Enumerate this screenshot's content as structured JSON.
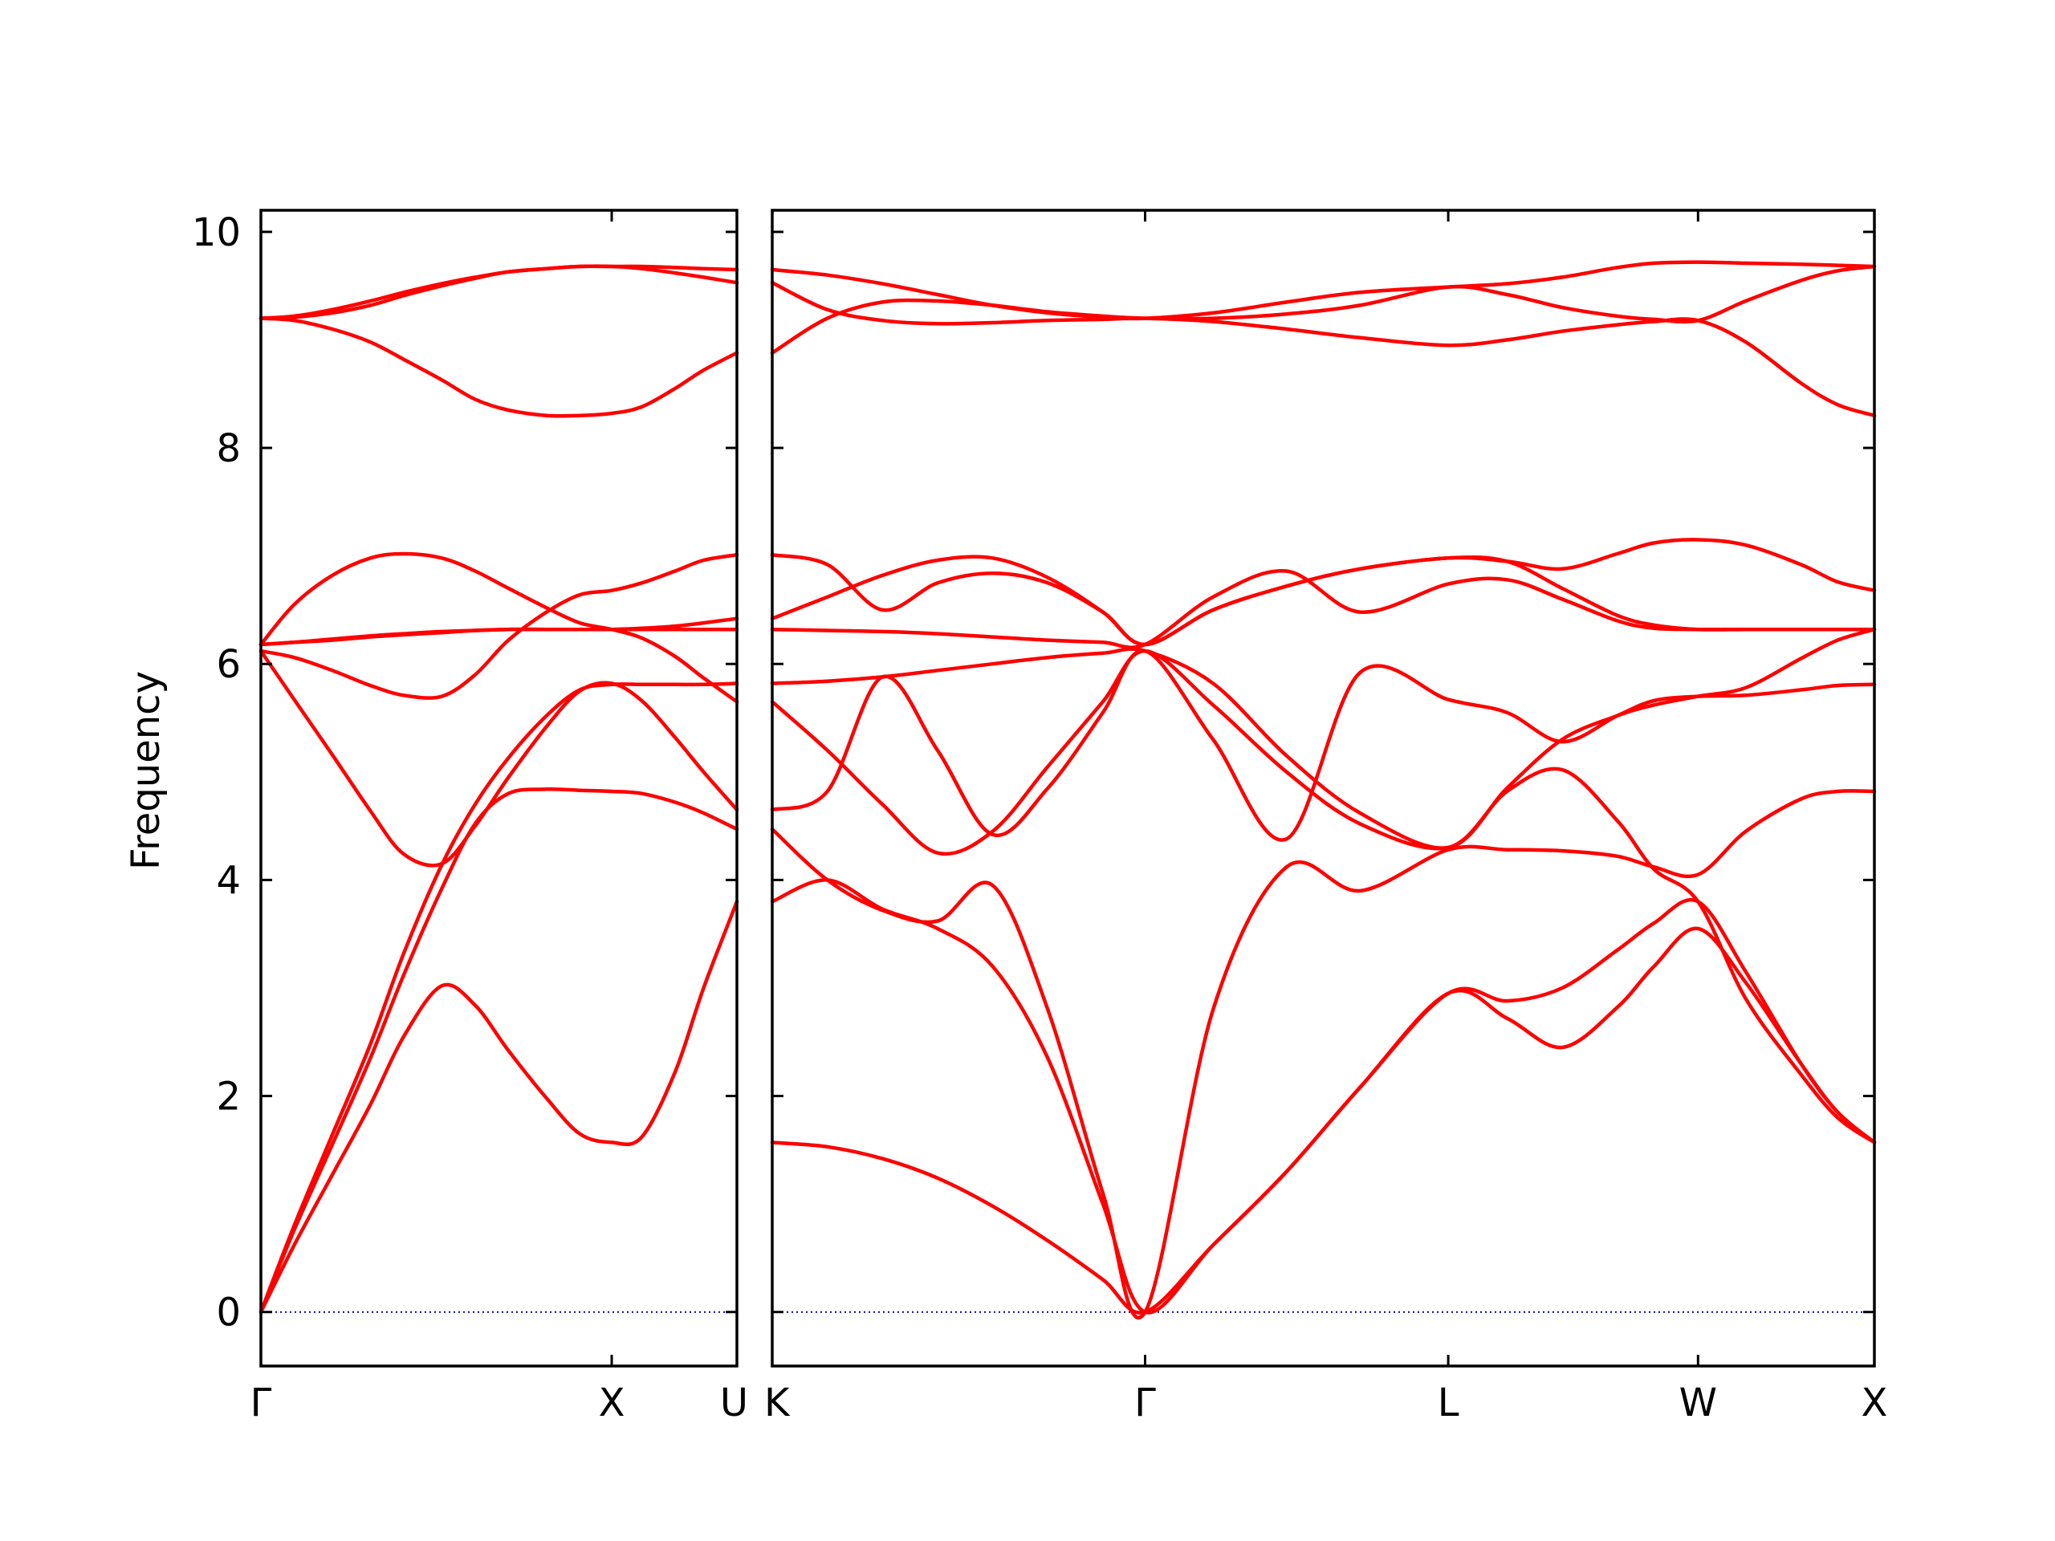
{
  "chart_data": {
    "type": "line",
    "title": "",
    "ylabel": "Frequency",
    "ylim": [
      -0.5,
      10.2
    ],
    "yticks": [
      0,
      2,
      4,
      6,
      8,
      10
    ],
    "grid": false,
    "legend": "none",
    "colors": {
      "band": "#ff0000",
      "zero_line": "#0000bb",
      "axes": "#000000"
    },
    "panels": [
      {
        "id": "gamma-x-u",
        "xlim": [
          0,
          1.0
        ],
        "xticks": [
          {
            "x": 0,
            "label": "Γ"
          },
          {
            "x": 0.737,
            "label": "X"
          },
          {
            "x": 1.0,
            "label": "U"
          }
        ],
        "series": [
          {
            "x": [
              0,
              0.07,
              0.15,
              0.23,
              0.3,
              0.38,
              0.45,
              0.52,
              0.6,
              0.67,
              0.737,
              0.8,
              0.87,
              0.93,
              1.0
            ],
            "y": [
              0.0,
              0.62,
              1.27,
              1.92,
              2.55,
              3.02,
              2.84,
              2.42,
              1.98,
              1.65,
              1.57,
              1.62,
              2.22,
              3.0,
              3.8
            ]
          },
          {
            "x": [
              0,
              0.07,
              0.15,
              0.23,
              0.3,
              0.38,
              0.45,
              0.52,
              0.6,
              0.67,
              0.737,
              0.8,
              0.87,
              0.93,
              1.0
            ],
            "y": [
              0.0,
              0.76,
              1.55,
              2.35,
              3.12,
              3.92,
              4.52,
              4.8,
              4.84,
              4.83,
              4.82,
              4.8,
              4.72,
              4.62,
              4.47
            ]
          },
          {
            "x": [
              0,
              0.07,
              0.15,
              0.23,
              0.3,
              0.38,
              0.45,
              0.52,
              0.6,
              0.67,
              0.737,
              0.8,
              0.87,
              0.93,
              1.0
            ],
            "y": [
              0.0,
              0.8,
              1.64,
              2.48,
              3.32,
              4.14,
              4.7,
              5.13,
              5.52,
              5.76,
              5.81,
              5.81,
              5.81,
              5.81,
              5.82
            ]
          },
          {
            "x": [
              0,
              0.07,
              0.15,
              0.23,
              0.3,
              0.38,
              0.45,
              0.52,
              0.6,
              0.67,
              0.737,
              0.8,
              0.87,
              0.93,
              1.0
            ],
            "y": [
              6.12,
              5.67,
              5.16,
              4.64,
              4.24,
              4.15,
              4.5,
              4.95,
              5.42,
              5.75,
              5.82,
              5.66,
              5.32,
              5.0,
              4.65
            ]
          },
          {
            "x": [
              0,
              0.07,
              0.15,
              0.23,
              0.3,
              0.38,
              0.45,
              0.52,
              0.6,
              0.67,
              0.737,
              0.8,
              0.87,
              0.93,
              1.0
            ],
            "y": [
              6.12,
              6.06,
              5.94,
              5.8,
              5.71,
              5.7,
              5.9,
              6.22,
              6.48,
              6.64,
              6.68,
              6.75,
              6.86,
              6.96,
              7.01
            ]
          },
          {
            "x": [
              0,
              0.07,
              0.15,
              0.23,
              0.3,
              0.38,
              0.45,
              0.52,
              0.6,
              0.67,
              0.737,
              0.8,
              0.87,
              0.93,
              1.0
            ],
            "y": [
              6.18,
              6.2,
              6.23,
              6.26,
              6.28,
              6.3,
              6.31,
              6.32,
              6.32,
              6.32,
              6.32,
              6.32,
              6.32,
              6.32,
              6.32
            ]
          },
          {
            "x": [
              0,
              0.07,
              0.15,
              0.23,
              0.3,
              0.38,
              0.45,
              0.52,
              0.6,
              0.67,
              0.737,
              0.8,
              0.87,
              0.93,
              1.0
            ],
            "y": [
              6.18,
              6.55,
              6.82,
              6.98,
              7.02,
              6.98,
              6.86,
              6.7,
              6.52,
              6.38,
              6.32,
              6.24,
              6.07,
              5.87,
              5.65
            ]
          },
          {
            "x": [
              0,
              0.07,
              0.15,
              0.23,
              0.3,
              0.38,
              0.45,
              0.52,
              0.6,
              0.67,
              0.737,
              0.8,
              0.87,
              0.93,
              1.0
            ],
            "y": [
              6.18,
              6.2,
              6.22,
              6.25,
              6.27,
              6.29,
              6.31,
              6.32,
              6.32,
              6.32,
              6.32,
              6.33,
              6.35,
              6.38,
              6.42
            ]
          },
          {
            "x": [
              0,
              0.07,
              0.15,
              0.23,
              0.3,
              0.38,
              0.45,
              0.52,
              0.6,
              0.67,
              0.737,
              0.8,
              0.87,
              0.93,
              1.0
            ],
            "y": [
              9.2,
              9.18,
              9.1,
              8.98,
              8.82,
              8.63,
              8.45,
              8.35,
              8.3,
              8.3,
              8.32,
              8.38,
              8.55,
              8.72,
              8.88
            ]
          },
          {
            "x": [
              0,
              0.07,
              0.15,
              0.23,
              0.3,
              0.38,
              0.45,
              0.52,
              0.6,
              0.67,
              0.737,
              0.8,
              0.87,
              0.93,
              1.0
            ],
            "y": [
              9.2,
              9.22,
              9.28,
              9.36,
              9.44,
              9.52,
              9.58,
              9.63,
              9.66,
              9.68,
              9.68,
              9.66,
              9.62,
              9.58,
              9.53
            ]
          },
          {
            "x": [
              0,
              0.07,
              0.15,
              0.23,
              0.3,
              0.38,
              0.45,
              0.52,
              0.6,
              0.67,
              0.737,
              0.8,
              0.87,
              0.93,
              1.0
            ],
            "y": [
              9.2,
              9.21,
              9.25,
              9.32,
              9.41,
              9.5,
              9.57,
              9.63,
              9.66,
              9.68,
              9.68,
              9.68,
              9.67,
              9.66,
              9.65
            ]
          }
        ]
      },
      {
        "id": "k-gamma-l-w-x",
        "xlim": [
          0,
          3.0
        ],
        "xticks": [
          {
            "x": 0,
            "label": "K"
          },
          {
            "x": 1.015,
            "label": "Γ"
          },
          {
            "x": 1.84,
            "label": "L"
          },
          {
            "x": 2.52,
            "label": "W"
          },
          {
            "x": 3.0,
            "label": "X"
          }
        ],
        "series": [
          {
            "x": [
              0,
              0.15,
              0.3,
              0.45,
              0.6,
              0.75,
              0.9,
              1.015,
              1.2,
              1.4,
              1.6,
              1.84,
              2.0,
              2.15,
              2.3,
              2.4,
              2.52,
              2.65,
              2.8,
              2.9,
              3.0
            ],
            "y": [
              1.57,
              1.53,
              1.42,
              1.24,
              0.98,
              0.66,
              0.3,
              0.0,
              0.62,
              1.3,
              2.08,
              2.95,
              2.72,
              2.45,
              2.82,
              3.2,
              3.55,
              3.05,
              2.3,
              1.85,
              1.57
            ]
          },
          {
            "x": [
              0,
              0.15,
              0.3,
              0.45,
              0.6,
              0.75,
              0.9,
              1.015,
              1.2,
              1.4,
              1.6,
              1.84,
              2.0,
              2.15,
              2.3,
              2.4,
              2.52,
              2.65,
              2.8,
              2.9,
              3.0
            ],
            "y": [
              3.8,
              4.0,
              3.73,
              3.55,
              3.2,
              2.35,
              1.0,
              0.0,
              0.62,
              1.3,
              2.08,
              2.95,
              2.88,
              3.0,
              3.35,
              3.6,
              3.8,
              3.15,
              2.3,
              1.85,
              1.57
            ]
          },
          {
            "x": [
              0,
              0.15,
              0.3,
              0.45,
              0.6,
              0.75,
              0.9,
              1.015,
              1.2,
              1.4,
              1.6,
              1.84,
              2.0,
              2.15,
              2.3,
              2.4,
              2.52,
              2.65,
              2.8,
              2.9,
              3.0
            ],
            "y": [
              4.47,
              4.0,
              3.72,
              3.62,
              3.95,
              2.8,
              1.1,
              0.0,
              2.8,
              4.12,
              3.9,
              4.28,
              4.28,
              4.27,
              4.22,
              4.12,
              4.05,
              4.45,
              4.75,
              4.82,
              4.82
            ]
          },
          {
            "x": [
              0,
              0.15,
              0.3,
              0.45,
              0.6,
              0.75,
              0.9,
              1.015,
              1.2,
              1.4,
              1.6,
              1.84,
              2.0,
              2.15,
              2.3,
              2.4,
              2.52,
              2.65,
              2.8,
              2.9,
              3.0
            ],
            "y": [
              4.65,
              4.82,
              5.88,
              5.2,
              4.42,
              4.85,
              5.55,
              6.12,
              5.3,
              4.38,
              5.92,
              5.67,
              5.55,
              5.28,
              5.52,
              5.66,
              5.7,
              5.71,
              5.76,
              5.8,
              5.81
            ]
          },
          {
            "x": [
              0,
              0.15,
              0.3,
              0.45,
              0.6,
              0.75,
              0.9,
              1.015,
              1.2,
              1.4,
              1.6,
              1.84,
              2.0,
              2.15,
              2.3,
              2.4,
              2.52,
              2.65,
              2.8,
              2.9,
              3.0
            ],
            "y": [
              5.65,
              5.2,
              4.7,
              4.25,
              4.45,
              5.05,
              5.65,
              6.12,
              5.62,
              5.0,
              4.52,
              4.3,
              4.82,
              5.02,
              4.55,
              4.1,
              3.8,
              2.9,
              2.2,
              1.8,
              1.57
            ]
          },
          {
            "x": [
              0,
              0.15,
              0.3,
              0.45,
              0.6,
              0.75,
              0.9,
              1.015,
              1.2,
              1.4,
              1.6,
              1.84,
              2.0,
              2.15,
              2.3,
              2.4,
              2.52,
              2.65,
              2.8,
              2.9,
              3.0
            ],
            "y": [
              5.82,
              5.84,
              5.88,
              5.94,
              6.0,
              6.06,
              6.1,
              6.12,
              5.82,
              5.15,
              4.62,
              4.3,
              4.85,
              5.3,
              5.52,
              5.62,
              5.7,
              5.78,
              6.05,
              6.22,
              6.32
            ]
          },
          {
            "x": [
              0,
              0.15,
              0.3,
              0.45,
              0.6,
              0.75,
              0.9,
              1.015,
              1.2,
              1.4,
              1.6,
              1.84,
              2.0,
              2.15,
              2.3,
              2.4,
              2.52,
              2.65,
              2.8,
              2.9,
              3.0
            ],
            "y": [
              6.32,
              6.31,
              6.3,
              6.28,
              6.25,
              6.22,
              6.2,
              6.18,
              6.62,
              6.86,
              6.48,
              6.74,
              6.78,
              6.6,
              6.4,
              6.33,
              6.32,
              6.32,
              6.32,
              6.32,
              6.32
            ]
          },
          {
            "x": [
              0,
              0.15,
              0.3,
              0.45,
              0.6,
              0.75,
              0.9,
              1.015,
              1.2,
              1.4,
              1.6,
              1.84,
              2.0,
              2.15,
              2.3,
              2.4,
              2.52,
              2.65,
              2.8,
              2.9,
              3.0
            ],
            "y": [
              6.42,
              6.62,
              6.82,
              6.96,
              6.98,
              6.8,
              6.48,
              6.18,
              6.5,
              6.72,
              6.88,
              6.98,
              6.95,
              6.7,
              6.45,
              6.36,
              6.32,
              6.32,
              6.32,
              6.32,
              6.32
            ]
          },
          {
            "x": [
              0,
              0.15,
              0.3,
              0.45,
              0.6,
              0.75,
              0.9,
              1.015,
              1.2,
              1.4,
              1.6,
              1.84,
              2.0,
              2.15,
              2.3,
              2.4,
              2.52,
              2.65,
              2.8,
              2.9,
              3.0
            ],
            "y": [
              7.01,
              6.92,
              6.5,
              6.75,
              6.84,
              6.75,
              6.48,
              6.18,
              6.5,
              6.72,
              6.88,
              6.98,
              6.95,
              6.88,
              7.02,
              7.12,
              7.15,
              7.1,
              6.92,
              6.76,
              6.68
            ]
          },
          {
            "x": [
              0,
              0.15,
              0.3,
              0.45,
              0.6,
              0.75,
              0.9,
              1.015,
              1.2,
              1.4,
              1.6,
              1.84,
              2.0,
              2.15,
              2.3,
              2.4,
              2.52,
              2.65,
              2.8,
              2.9,
              3.0
            ],
            "y": [
              8.88,
              9.2,
              9.35,
              9.36,
              9.32,
              9.26,
              9.22,
              9.2,
              9.2,
              9.24,
              9.32,
              9.49,
              9.42,
              9.3,
              9.22,
              9.19,
              9.18,
              9.36,
              9.55,
              9.64,
              9.68
            ]
          },
          {
            "x": [
              0,
              0.15,
              0.3,
              0.45,
              0.6,
              0.75,
              0.9,
              1.015,
              1.2,
              1.4,
              1.6,
              1.84,
              2.0,
              2.15,
              2.3,
              2.4,
              2.52,
              2.65,
              2.8,
              2.9,
              3.0
            ],
            "y": [
              9.53,
              9.28,
              9.18,
              9.15,
              9.16,
              9.18,
              9.19,
              9.2,
              9.17,
              9.1,
              9.02,
              8.95,
              9.0,
              9.08,
              9.14,
              9.17,
              9.18,
              8.98,
              8.6,
              8.4,
              8.3
            ]
          },
          {
            "x": [
              0,
              0.15,
              0.3,
              0.45,
              0.6,
              0.75,
              0.9,
              1.015,
              1.2,
              1.4,
              1.6,
              1.84,
              2.0,
              2.15,
              2.3,
              2.4,
              2.52,
              2.65,
              2.8,
              2.9,
              3.0
            ],
            "y": [
              9.65,
              9.6,
              9.52,
              9.42,
              9.32,
              9.25,
              9.21,
              9.2,
              9.25,
              9.35,
              9.44,
              9.49,
              9.52,
              9.58,
              9.67,
              9.71,
              9.72,
              9.71,
              9.7,
              9.69,
              9.68
            ]
          }
        ]
      }
    ]
  }
}
